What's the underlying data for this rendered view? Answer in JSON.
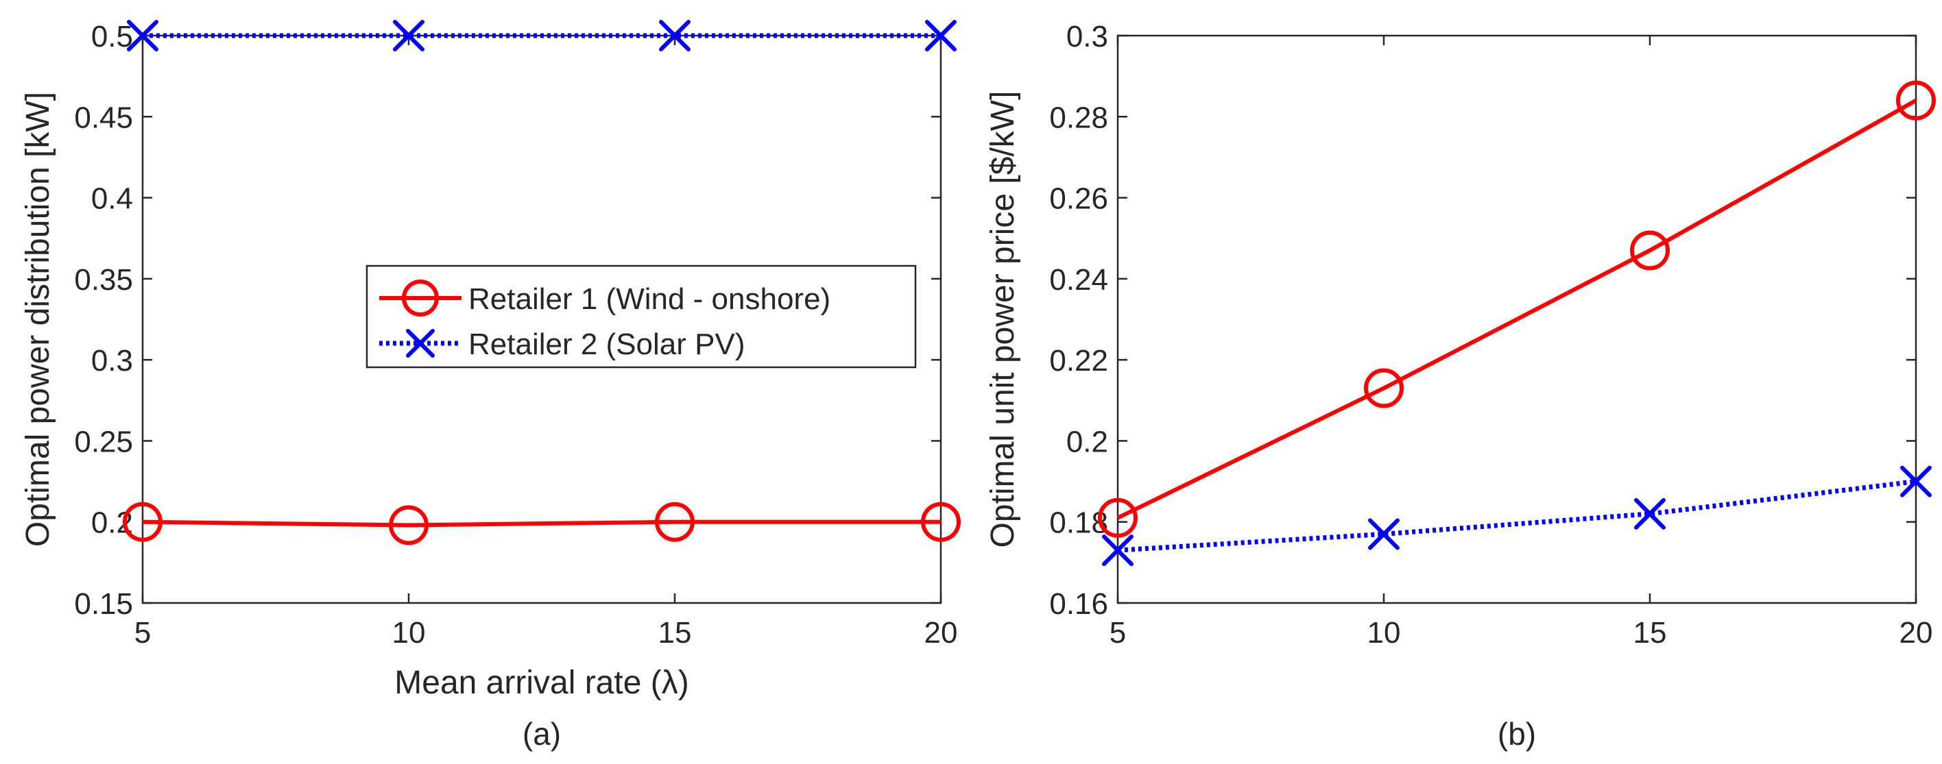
{
  "chart_data": [
    {
      "id": "a",
      "type": "line",
      "title": "",
      "caption": "(a)",
      "xlabel": "Mean arrival rate (λ)",
      "ylabel": "Optimal power distribution [kW]",
      "x": [
        5,
        10,
        15,
        20
      ],
      "xlim": [
        5,
        20
      ],
      "ylim": [
        0.15,
        0.5
      ],
      "xticks": [
        5,
        10,
        15,
        20
      ],
      "xtick_labels": [
        "5",
        "10",
        "15",
        "20"
      ],
      "yticks": [
        0.15,
        0.2,
        0.25,
        0.3,
        0.35,
        0.4,
        0.45,
        0.5
      ],
      "ytick_labels": [
        "0.15",
        "0.2",
        "0.25",
        "0.3",
        "0.35",
        "0.4",
        "0.45",
        "0.5"
      ],
      "grid": false,
      "legend": {
        "show": true,
        "placement": "center-right",
        "entries": [
          "Retailer 1 (Wind - onshore)",
          "Retailer 2 (Solar PV)"
        ]
      },
      "series": [
        {
          "name": "Retailer 1 (Wind - onshore)",
          "values": [
            0.2,
            0.198,
            0.2,
            0.2
          ],
          "color": "#ff0000",
          "line": "solid",
          "marker": "circle"
        },
        {
          "name": "Retailer 2 (Solar PV)",
          "values": [
            0.5,
            0.5,
            0.5,
            0.5
          ],
          "color": "#0000ff",
          "line": "dotted",
          "marker": "x"
        }
      ]
    },
    {
      "id": "b",
      "type": "line",
      "title": "",
      "caption": "(b)",
      "xlabel": "",
      "ylabel": "Optimal unit power price [$/kW]",
      "x": [
        5,
        10,
        15,
        20
      ],
      "xlim": [
        5,
        20
      ],
      "ylim": [
        0.16,
        0.3
      ],
      "xticks": [
        5,
        10,
        15,
        20
      ],
      "xtick_labels": [
        "5",
        "10",
        "15",
        "20"
      ],
      "yticks": [
        0.16,
        0.18,
        0.2,
        0.22,
        0.24,
        0.26,
        0.28,
        0.3
      ],
      "ytick_labels": [
        "0.16",
        "0.18",
        "0.2",
        "0.22",
        "0.24",
        "0.26",
        "0.28",
        "0.3"
      ],
      "grid": false,
      "legend": {
        "show": false
      },
      "series": [
        {
          "name": "Retailer 1 (Wind - onshore)",
          "values": [
            0.181,
            0.213,
            0.247,
            0.284
          ],
          "color": "#ff0000",
          "line": "solid",
          "marker": "circle"
        },
        {
          "name": "Retailer 2 (Solar PV)",
          "values": [
            0.173,
            0.177,
            0.182,
            0.19
          ],
          "color": "#0000ff",
          "line": "dotted",
          "marker": "x"
        }
      ]
    }
  ]
}
